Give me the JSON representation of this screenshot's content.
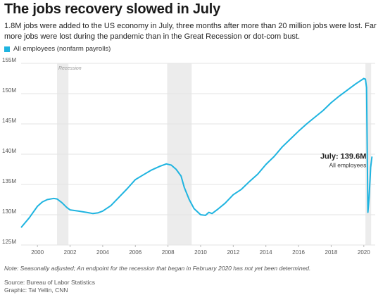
{
  "header": {
    "title": "The jobs recovery slowed in July",
    "subtitle": "1.8M jobs were added to the US economy in July, three months after more than 20 million jobs were lost. Far more jobs were lost during the pandemic than in the Great Recession or dot-com bust."
  },
  "footer": {
    "note": "Note: Seasonally adjusted; An endpoint for the recession that began in February 2020 has not yet been determined.",
    "source": "Source: Bureau of Labor Statistics",
    "credit": "Graphic: Tal Yellin, CNN"
  },
  "chart_data": {
    "type": "line",
    "title": "The jobs recovery slowed in July",
    "xlabel": "",
    "ylabel": "",
    "xlim": [
      1999,
      2020.7
    ],
    "ylim": [
      125,
      155
    ],
    "x_ticks": [
      2000,
      2002,
      2004,
      2006,
      2008,
      2010,
      2012,
      2014,
      2016,
      2018,
      2020
    ],
    "y_ticks": [
      {
        "value": 125,
        "label": "125M"
      },
      {
        "value": 130,
        "label": "130M"
      },
      {
        "value": 135,
        "label": "135M"
      },
      {
        "value": 140,
        "label": "140M"
      },
      {
        "value": 145,
        "label": "145M"
      },
      {
        "value": 150,
        "label": "150M"
      },
      {
        "value": 155,
        "label": "155M"
      }
    ],
    "grid": true,
    "legend": {
      "position": "top-left",
      "entries": [
        "All employees (nonfarm payrolls)"
      ]
    },
    "recessions": [
      {
        "start": 2001.2,
        "end": 2001.9,
        "label": "Recession"
      },
      {
        "start": 2007.95,
        "end": 2009.45,
        "label": ""
      },
      {
        "start": 2020.1,
        "end": 2020.45,
        "label": ""
      }
    ],
    "annotation": {
      "x": 2020.5,
      "y": 139.6,
      "label": "July: 139.6M",
      "sublabel": "All employees"
    },
    "series": [
      {
        "name": "All employees (nonfarm payrolls)",
        "color": "#1fb4e0",
        "x": [
          1999.0,
          1999.5,
          2000.0,
          2000.3,
          2000.6,
          2001.0,
          2001.2,
          2001.5,
          2001.8,
          2002.0,
          2002.5,
          2003.0,
          2003.4,
          2003.7,
          2004.0,
          2004.5,
          2005.0,
          2005.5,
          2006.0,
          2006.5,
          2007.0,
          2007.5,
          2007.9,
          2008.2,
          2008.5,
          2008.8,
          2009.0,
          2009.3,
          2009.6,
          2010.0,
          2010.3,
          2010.5,
          2010.7,
          2011.0,
          2011.5,
          2012.0,
          2012.5,
          2013.0,
          2013.5,
          2014.0,
          2014.5,
          2015.0,
          2015.5,
          2016.0,
          2016.5,
          2017.0,
          2017.5,
          2018.0,
          2018.5,
          2019.0,
          2019.5,
          2020.0,
          2020.1,
          2020.17,
          2020.25,
          2020.33,
          2020.42,
          2020.5
        ],
        "y": [
          127.9,
          129.5,
          131.4,
          132.1,
          132.5,
          132.7,
          132.6,
          132.0,
          131.2,
          130.8,
          130.6,
          130.4,
          130.2,
          130.3,
          130.6,
          131.5,
          132.9,
          134.3,
          135.8,
          136.6,
          137.4,
          138.0,
          138.4,
          138.2,
          137.5,
          136.4,
          134.5,
          132.5,
          131.0,
          130.0,
          129.9,
          130.4,
          130.2,
          130.8,
          131.9,
          133.3,
          134.2,
          135.5,
          136.7,
          138.3,
          139.6,
          141.2,
          142.5,
          143.8,
          145.0,
          146.1,
          147.2,
          148.5,
          149.6,
          150.6,
          151.6,
          152.5,
          152.4,
          151.0,
          130.4,
          133.0,
          137.8,
          139.6
        ]
      }
    ]
  }
}
